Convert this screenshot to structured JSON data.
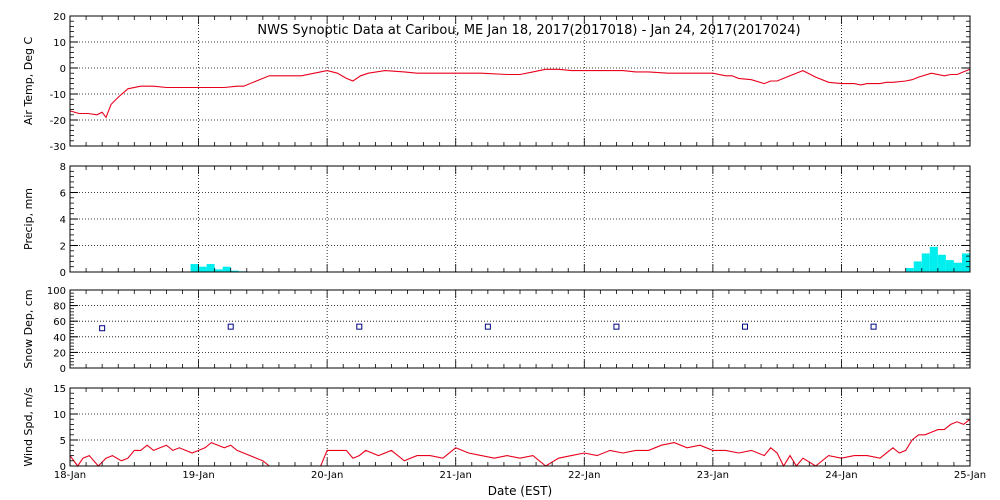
{
  "chart_data": {
    "title": "NWS Synoptic Data at Caribou, ME   Jan 18, 2017(2017018) - Jan 24, 2017(2017024)",
    "xlabel": "Date (EST)",
    "x_ticks": [
      "18-Jan",
      "19-Jan",
      "20-Jan",
      "21-Jan",
      "22-Jan",
      "23-Jan",
      "24-Jan",
      "25-Jan"
    ],
    "xlim": [
      0,
      7
    ],
    "x_unit": "days since 18-Jan 00:00 EST",
    "grid": true,
    "panels": [
      {
        "id": "air-temp",
        "type": "line",
        "ylabel": "Air Temp, Deg C",
        "ylim": [
          -30,
          20
        ],
        "yticks": [
          -30,
          -20,
          -10,
          0,
          10,
          20
        ],
        "color": "#e8001c",
        "series": [
          {
            "x": [
              0,
              0.07,
              0.14,
              0.21,
              0.25,
              0.28,
              0.32,
              0.38,
              0.45,
              0.55,
              0.65,
              0.75,
              0.85,
              1.0,
              1.2,
              1.3,
              1.35,
              1.45,
              1.55,
              1.65,
              1.8,
              1.9,
              2.0,
              2.08,
              2.15,
              2.2,
              2.26,
              2.32,
              2.45,
              2.6,
              2.7,
              2.85,
              3.0,
              3.2,
              3.4,
              3.5,
              3.6,
              3.65,
              3.7,
              3.8,
              3.9,
              4.0,
              4.2,
              4.3,
              4.4,
              4.5,
              4.65,
              4.8,
              5.0,
              5.1,
              5.15,
              5.2,
              5.3,
              5.4,
              5.45,
              5.5,
              5.6,
              5.7,
              5.8,
              5.9,
              6.0,
              6.1,
              6.15,
              6.2,
              6.3,
              6.35,
              6.4,
              6.5,
              6.55,
              6.6,
              6.7,
              6.8,
              6.85,
              6.9,
              7.0
            ],
            "y": [
              -16.5,
              -17.5,
              -17.5,
              -18,
              -17,
              -19,
              -14,
              -11,
              -8,
              -7,
              -7,
              -7.5,
              -7.5,
              -7.5,
              -7.5,
              -7,
              -7,
              -5,
              -3,
              -3,
              -3,
              -2,
              -1,
              -2,
              -4,
              -5,
              -3,
              -2,
              -1,
              -1.5,
              -2,
              -2,
              -2,
              -2,
              -2.5,
              -2.5,
              -1.5,
              -1,
              -0.5,
              -0.5,
              -1,
              -1,
              -1,
              -1,
              -1.5,
              -1.5,
              -2,
              -2,
              -2,
              -3,
              -3,
              -4,
              -4.5,
              -6,
              -5,
              -5,
              -3,
              -1,
              -3.5,
              -5.5,
              -6,
              -6,
              -6.5,
              -6,
              -6,
              -5.5,
              -5.5,
              -5,
              -4.5,
              -3.5,
              -2,
              -3,
              -2.5,
              -2.5,
              -0.5
            ]
          }
        ]
      },
      {
        "id": "precip",
        "type": "bar",
        "ylabel": "Precip, mm",
        "ylim": [
          0,
          8
        ],
        "yticks": [
          0,
          2,
          4,
          6,
          8
        ],
        "color": "#00eeee",
        "bar_width": 0.0625,
        "series": [
          {
            "x": [
              1.0,
              1.0625,
              1.125,
              1.1875,
              1.25,
              1.3125,
              1.375,
              6.5625,
              6.625,
              6.6875,
              6.75,
              6.8125,
              6.875,
              6.9375,
              7.0
            ],
            "y": [
              0.6,
              0.4,
              0.6,
              0.2,
              0.4,
              0.1,
              0.05,
              0.3,
              0.8,
              1.4,
              1.9,
              1.3,
              0.9,
              0.7,
              1.4
            ]
          }
        ]
      },
      {
        "id": "snow-depth",
        "type": "scatter",
        "ylabel": "Snow Dep, cm",
        "ylim": [
          0,
          100
        ],
        "yticks": [
          0,
          20,
          40,
          60,
          80,
          100
        ],
        "color": "#000080",
        "series": [
          {
            "x": [
              0.25,
              1.25,
              2.25,
              3.25,
              4.25,
              5.25,
              6.25
            ],
            "y": [
              51,
              53,
              53,
              53,
              53,
              53,
              53
            ]
          }
        ]
      },
      {
        "id": "wind-speed",
        "type": "line",
        "ylabel": "Wind Spd, m/s",
        "ylim": [
          0,
          15
        ],
        "yticks": [
          0,
          5,
          10,
          15
        ],
        "color": "#e8001c",
        "series": [
          {
            "x": [
              0,
              0.06,
              0.1,
              0.15,
              0.22,
              0.28,
              0.33,
              0.4,
              0.45,
              0.5,
              0.55,
              0.6,
              0.65,
              0.7,
              0.75,
              0.8,
              0.85,
              0.9,
              0.95,
              1.0,
              1.05,
              1.1,
              1.15,
              1.2,
              1.25,
              1.3,
              1.35,
              1.4,
              1.45,
              1.5,
              1.55,
              1.6,
              1.95,
              2.0,
              2.05,
              2.15,
              2.2,
              2.25,
              2.3,
              2.4,
              2.5,
              2.6,
              2.7,
              2.8,
              2.9,
              3.0,
              3.1,
              3.2,
              3.3,
              3.4,
              3.5,
              3.6,
              3.7,
              3.8,
              3.9,
              4.0,
              4.1,
              4.2,
              4.3,
              4.4,
              4.5,
              4.6,
              4.7,
              4.8,
              4.9,
              5.0,
              5.1,
              5.2,
              5.3,
              5.4,
              5.45,
              5.5,
              5.55,
              5.6,
              5.65,
              5.7,
              5.8,
              5.9,
              6.0,
              6.1,
              6.2,
              6.3,
              6.4,
              6.45,
              6.5,
              6.55,
              6.6,
              6.65,
              6.7,
              6.75,
              6.8,
              6.85,
              6.9,
              6.95,
              7.0
            ],
            "y": [
              2,
              0,
              1.5,
              2,
              0,
              1.5,
              2,
              1,
              1.5,
              3,
              3,
              4,
              3,
              3.5,
              4,
              3,
              3.5,
              3,
              2.5,
              3,
              3.5,
              4.5,
              4,
              3.5,
              4,
              3,
              2.5,
              2,
              1.5,
              1,
              0,
              0,
              0,
              3,
              3,
              3,
              1.5,
              2,
              3,
              2,
              3,
              1,
              2,
              2,
              1.5,
              3.5,
              2.5,
              2,
              1.5,
              2,
              1.5,
              2,
              0,
              1.5,
              2,
              2.5,
              2,
              3,
              2.5,
              3,
              3,
              4,
              4.5,
              3.5,
              4,
              3,
              3,
              2.5,
              3,
              2,
              3.5,
              2.5,
              0,
              2,
              0,
              1.5,
              0,
              2,
              1.5,
              2,
              2,
              1.5,
              3.5,
              2.5,
              3,
              5,
              6,
              6,
              6.5,
              7,
              7,
              8,
              8.5,
              8,
              9
            ]
          }
        ]
      }
    ]
  }
}
